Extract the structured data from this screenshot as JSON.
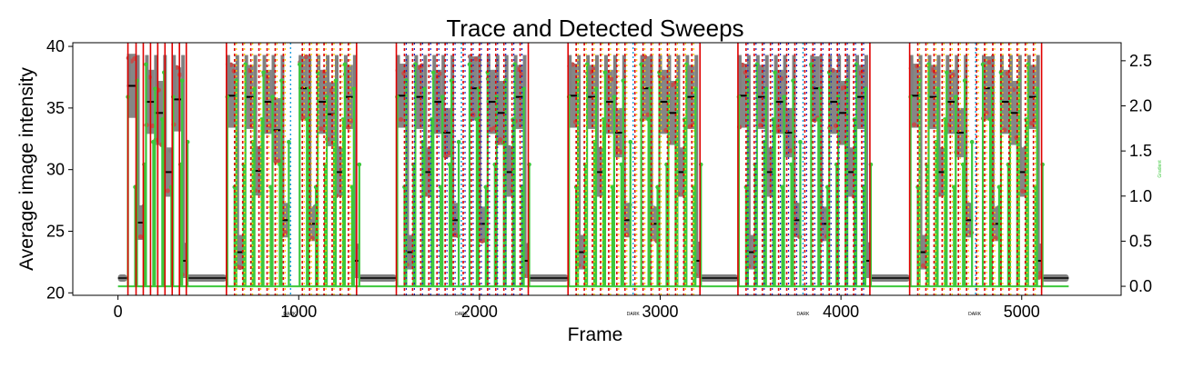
{
  "chart_data": {
    "type": "line",
    "title": "Trace and Detected Sweeps",
    "xlabel": "Frame",
    "ylabel": "Average image intensity",
    "y2label": "Gradient",
    "xlim": [
      -250,
      5550
    ],
    "ylim": [
      19.8,
      40.3
    ],
    "y2lim": [
      -0.1,
      2.7
    ],
    "xticks": [
      0,
      1000,
      2000,
      3000,
      4000,
      5000
    ],
    "yticks": [
      20,
      25,
      30,
      35,
      40
    ],
    "y2ticks": [
      0.0,
      0.5,
      1.0,
      1.5,
      2.0,
      2.5
    ],
    "colors": {
      "trace": "#808080",
      "trace_high": "#c0504d",
      "step": "#000000",
      "gradient": "#3cc83c",
      "sweep_line": "#e00000",
      "boundary_line": "#2020c0",
      "dark_line": "#1fa0e0",
      "yellow_line": "#ffd000"
    },
    "sweeps": [
      {
        "start": 50,
        "end": 380,
        "baseline": 21.2,
        "plateaus": [
          [
            50,
            100,
            36.8
          ],
          [
            100,
            150,
            25.7
          ],
          [
            150,
            200,
            35.5
          ],
          [
            200,
            250,
            34.6
          ],
          [
            250,
            300,
            29.8
          ],
          [
            300,
            350,
            35.7
          ],
          [
            350,
            380,
            22.6
          ]
        ],
        "red_lines": [
          55,
          100,
          140,
          180,
          220,
          260,
          300,
          340,
          378
        ]
      },
      {
        "start": 600,
        "end": 1330,
        "baseline": 21.2,
        "plateaus": [
          [
            600,
            650,
            36.0
          ],
          [
            650,
            700,
            23.3
          ],
          [
            700,
            750,
            35.9
          ],
          [
            750,
            800,
            29.9
          ],
          [
            800,
            850,
            35.5
          ],
          [
            850,
            900,
            33.2
          ],
          [
            900,
            950,
            25.9
          ],
          [
            1000,
            1050,
            36.6
          ],
          [
            1050,
            1100,
            25.6
          ],
          [
            1100,
            1150,
            35.5
          ],
          [
            1150,
            1200,
            34.5
          ],
          [
            1200,
            1250,
            29.8
          ],
          [
            1250,
            1300,
            35.9
          ],
          [
            1300,
            1330,
            22.6
          ]
        ],
        "red_lines": [
          600,
          645,
          690,
          735,
          780,
          825,
          870,
          915,
          1020,
          1060,
          1100,
          1140,
          1185,
          1230,
          1275,
          1320
        ],
        "dark_x": 955
      },
      {
        "start": 1540,
        "end": 2270,
        "baseline": 21.2,
        "plateaus": [
          [
            1540,
            1590,
            36.0
          ],
          [
            1590,
            1640,
            23.3
          ],
          [
            1640,
            1690,
            35.9
          ],
          [
            1690,
            1740,
            29.8
          ],
          [
            1740,
            1790,
            35.5
          ],
          [
            1790,
            1840,
            33.0
          ],
          [
            1840,
            1890,
            25.9
          ],
          [
            1940,
            1990,
            36.6
          ],
          [
            1990,
            2040,
            25.6
          ],
          [
            2040,
            2090,
            35.5
          ],
          [
            2090,
            2140,
            34.6
          ],
          [
            2140,
            2190,
            29.8
          ],
          [
            2190,
            2240,
            35.9
          ],
          [
            2240,
            2270,
            22.6
          ]
        ],
        "red_lines": [
          1540,
          1585,
          1630,
          1675,
          1720,
          1765,
          1810,
          1855,
          1910,
          1955,
          2000,
          2045,
          2090,
          2135,
          2180,
          2225,
          2270
        ],
        "dark_x": 1900
      },
      {
        "start": 2490,
        "end": 3220,
        "baseline": 21.2,
        "plateaus": [
          [
            2490,
            2540,
            36.0
          ],
          [
            2540,
            2590,
            23.3
          ],
          [
            2590,
            2640,
            35.9
          ],
          [
            2640,
            2690,
            29.8
          ],
          [
            2690,
            2740,
            35.5
          ],
          [
            2740,
            2790,
            33.0
          ],
          [
            2790,
            2840,
            25.9
          ],
          [
            2890,
            2940,
            36.6
          ],
          [
            2940,
            2990,
            25.6
          ],
          [
            2990,
            3040,
            35.5
          ],
          [
            3040,
            3090,
            34.6
          ],
          [
            3090,
            3140,
            29.8
          ],
          [
            3140,
            3190,
            35.9
          ],
          [
            3190,
            3220,
            22.6
          ]
        ],
        "red_lines": [
          2490,
          2535,
          2580,
          2625,
          2670,
          2715,
          2760,
          2805,
          2860,
          2905,
          2950,
          2995,
          3040,
          3085,
          3130,
          3175,
          3220
        ],
        "dark_x": 2850
      },
      {
        "start": 3430,
        "end": 4160,
        "baseline": 21.2,
        "plateaus": [
          [
            3430,
            3480,
            36.0
          ],
          [
            3480,
            3530,
            23.3
          ],
          [
            3530,
            3580,
            35.9
          ],
          [
            3580,
            3630,
            29.8
          ],
          [
            3630,
            3680,
            35.5
          ],
          [
            3680,
            3730,
            33.0
          ],
          [
            3730,
            3780,
            25.9
          ],
          [
            3830,
            3880,
            36.6
          ],
          [
            3880,
            3930,
            25.6
          ],
          [
            3930,
            3980,
            35.5
          ],
          [
            3980,
            4030,
            34.6
          ],
          [
            4030,
            4080,
            29.8
          ],
          [
            4080,
            4130,
            35.9
          ],
          [
            4130,
            4160,
            22.6
          ]
        ],
        "red_lines": [
          3430,
          3475,
          3520,
          3565,
          3610,
          3655,
          3700,
          3745,
          3800,
          3845,
          3890,
          3935,
          3980,
          4025,
          4070,
          4115,
          4160
        ],
        "dark_x": 3790
      },
      {
        "start": 4380,
        "end": 5110,
        "baseline": 21.2,
        "plateaus": [
          [
            4380,
            4430,
            36.0
          ],
          [
            4430,
            4480,
            23.3
          ],
          [
            4480,
            4530,
            35.9
          ],
          [
            4530,
            4580,
            29.8
          ],
          [
            4580,
            4630,
            35.5
          ],
          [
            4630,
            4680,
            33.0
          ],
          [
            4680,
            4730,
            25.9
          ],
          [
            4780,
            4830,
            36.6
          ],
          [
            4830,
            4880,
            25.6
          ],
          [
            4880,
            4930,
            35.5
          ],
          [
            4930,
            4980,
            34.6
          ],
          [
            4980,
            5030,
            29.8
          ],
          [
            5030,
            5080,
            35.9
          ],
          [
            5080,
            5110,
            22.6
          ]
        ],
        "red_lines": [
          4380,
          4425,
          4470,
          4515,
          4560,
          4605,
          4650,
          4695,
          4750,
          4795,
          4840,
          4885,
          4930,
          4975,
          5020,
          5065,
          5110
        ],
        "dark_x": 4745
      }
    ],
    "flat_segments": [
      [
        0,
        50
      ],
      [
        380,
        600
      ],
      [
        1330,
        1540
      ],
      [
        2270,
        2490
      ],
      [
        3220,
        3430
      ],
      [
        4160,
        4380
      ],
      [
        5110,
        5260
      ]
    ],
    "dark_labels": [
      {
        "x": 950,
        "text": "DARK"
      },
      {
        "x": 1900,
        "text": "DARK"
      },
      {
        "x": 2850,
        "text": "DARK"
      },
      {
        "x": 3790,
        "text": "DARK"
      },
      {
        "x": 4740,
        "text": "DARK"
      }
    ]
  }
}
